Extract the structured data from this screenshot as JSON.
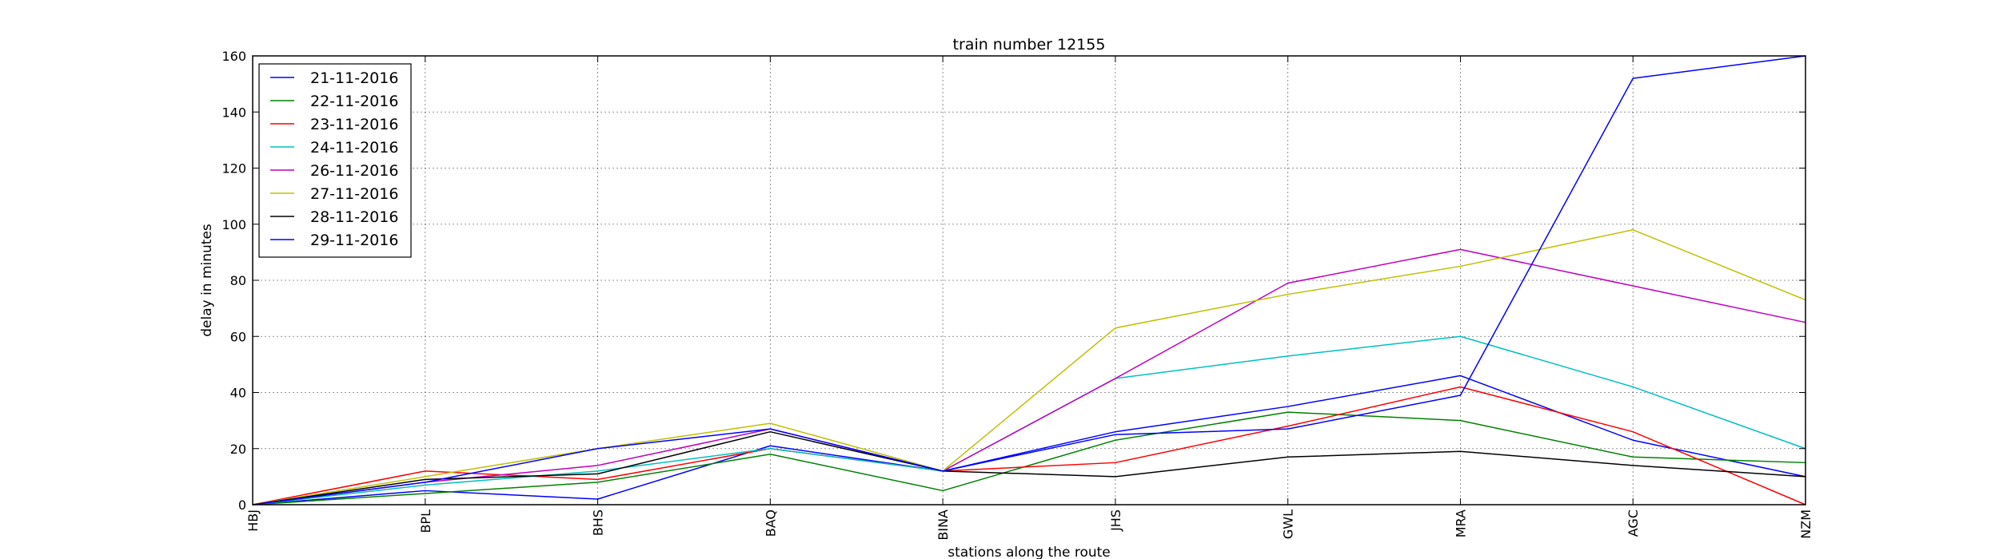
{
  "chart_data": {
    "type": "line",
    "title": "train number 12155",
    "xlabel": "stations along the route",
    "ylabel": "delay in minutes",
    "categories": [
      "HBJ",
      "BPL",
      "BHS",
      "BAQ",
      "BINA",
      "JHS",
      "GWL",
      "MRA",
      "AGC",
      "NZM"
    ],
    "ylim": [
      0,
      160
    ],
    "yticks": [
      0,
      20,
      40,
      60,
      80,
      100,
      120,
      140,
      160
    ],
    "grid": true,
    "legend_position": "top-left",
    "series": [
      {
        "name": "21-11-2016",
        "color": "#0000ff",
        "values": [
          0,
          5,
          2,
          21,
          12,
          26,
          35,
          46,
          23,
          10
        ]
      },
      {
        "name": "22-11-2016",
        "color": "#008000",
        "values": [
          0,
          4,
          8,
          18,
          5,
          23,
          33,
          30,
          17,
          15
        ]
      },
      {
        "name": "23-11-2016",
        "color": "#ff0000",
        "values": [
          0,
          12,
          9,
          20,
          12,
          15,
          28,
          42,
          26,
          0
        ]
      },
      {
        "name": "24-11-2016",
        "color": "#00bfbf",
        "values": [
          0,
          7,
          12,
          20,
          12,
          45,
          53,
          60,
          42,
          20
        ]
      },
      {
        "name": "26-11-2016",
        "color": "#bf00bf",
        "values": [
          0,
          8,
          14,
          27,
          12,
          45,
          79,
          91,
          78,
          65
        ]
      },
      {
        "name": "27-11-2016",
        "color": "#bfbf00",
        "values": [
          0,
          10,
          20,
          29,
          12,
          63,
          75,
          85,
          98,
          73
        ]
      },
      {
        "name": "28-11-2016",
        "color": "#000000",
        "values": [
          0,
          9,
          11,
          26,
          12,
          10,
          17,
          19,
          14,
          10
        ]
      },
      {
        "name": "29-11-2016",
        "color": "#0000ff",
        "values": [
          0,
          8,
          20,
          27,
          12,
          25,
          27,
          39,
          152,
          160
        ]
      }
    ]
  }
}
